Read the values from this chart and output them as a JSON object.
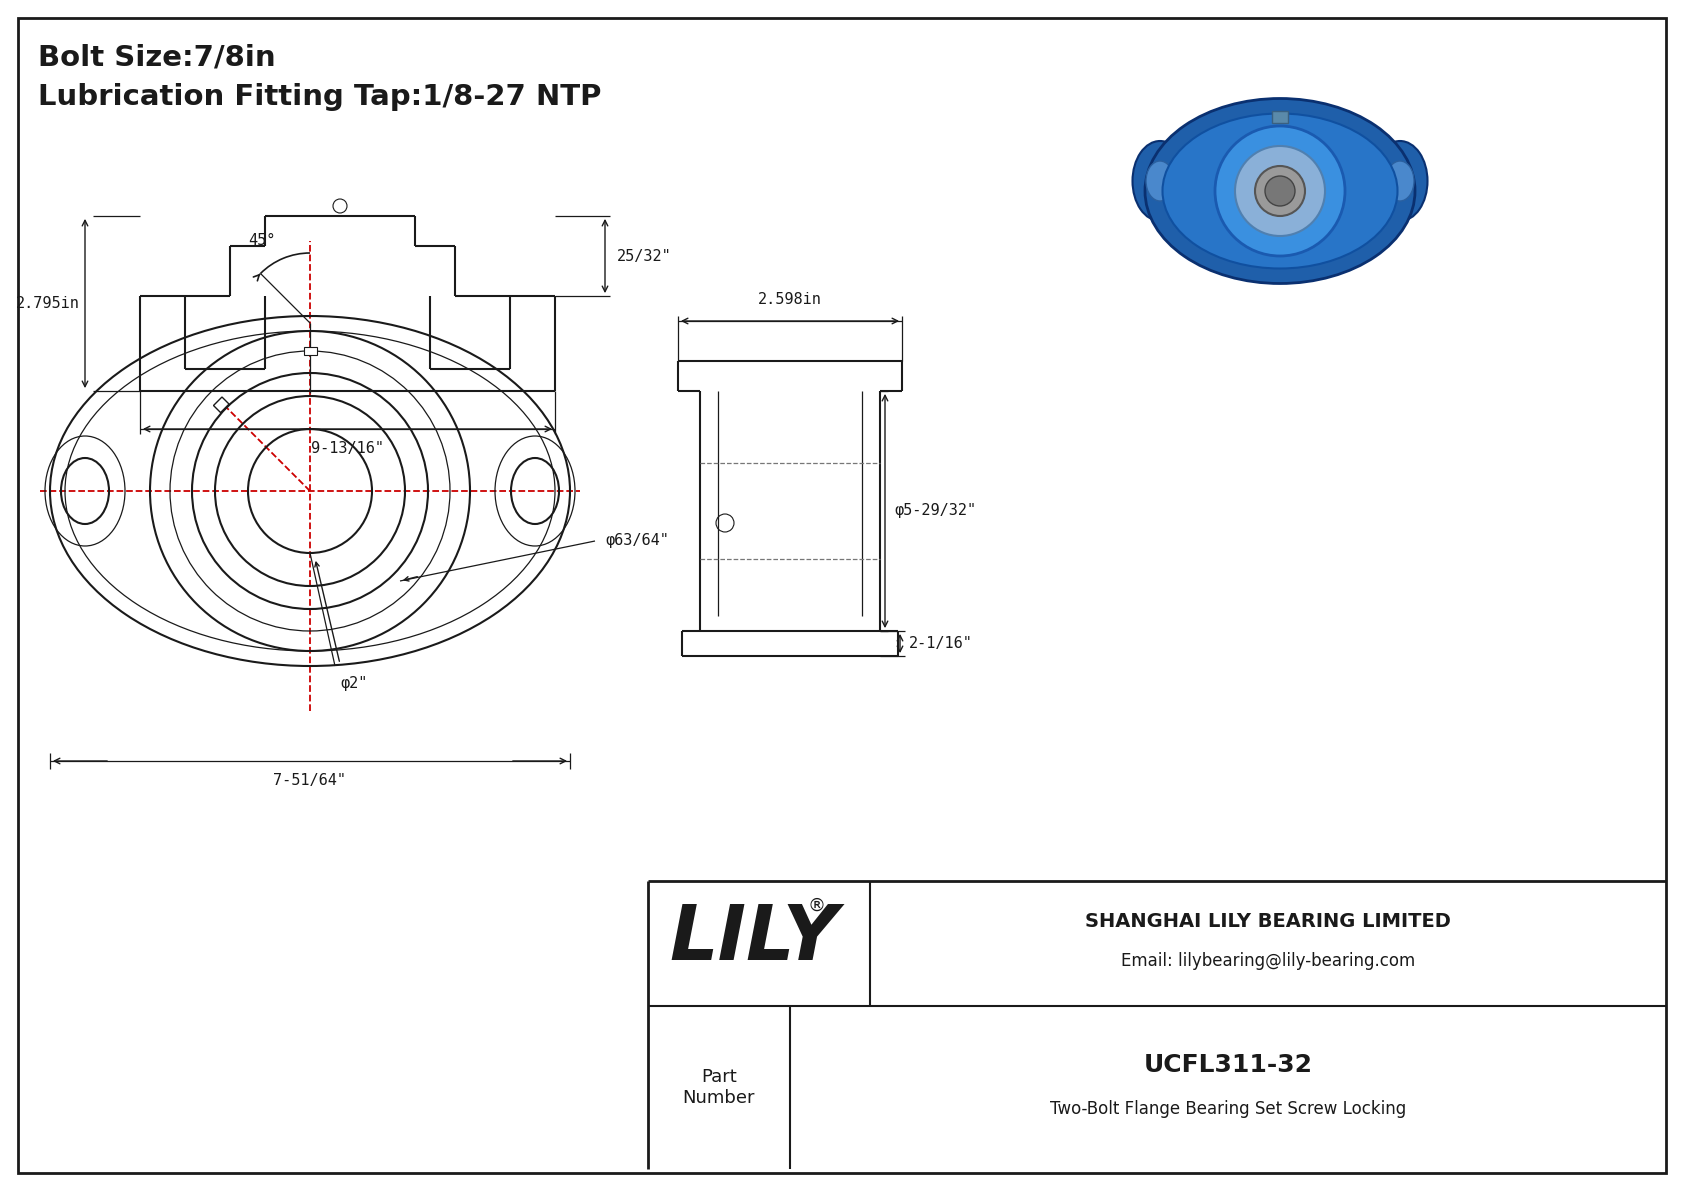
{
  "bg_color": "#ffffff",
  "line_color": "#1a1a1a",
  "red_line_color": "#cc0000",
  "text_color": "#1a1a1a",
  "title_line1": "Bolt Size:7/8in",
  "title_line2": "Lubrication Fitting Tap:1/8-27 NTP",
  "company": "SHANGHAI LILY BEARING LIMITED",
  "email": "Email: lilybearing@lily-bearing.com",
  "part_number_label": "Part\nNumber",
  "part_number": "UCFL311-32",
  "part_description": "Two-Bolt Flange Bearing Set Screw Locking",
  "brand": "LILY",
  "dim_63_64": "φ63/64\"",
  "dim_2": "φ2\"",
  "dim_7_51_64": "7-51/64\"",
  "dim_45": "45°",
  "dim_5_29_32": "φ5-29/32\"",
  "dim_2_598": "2.598in",
  "dim_2_1_16": "2-1/16\"",
  "dim_25_32": "25/32\"",
  "dim_9_13_16": "9-13/16\"",
  "dim_2_795": "2.795in"
}
